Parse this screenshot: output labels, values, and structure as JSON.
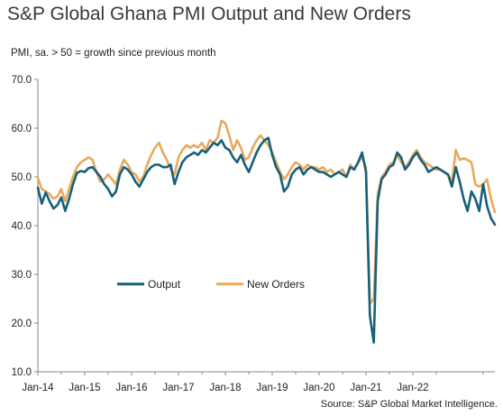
{
  "header": {
    "title": "S&P Global Ghana PMI Output and New Orders",
    "subtitle": "PMI, sa. > 50 = growth  since previous  month",
    "source": "Source: S&P Global Market Intelligence."
  },
  "colors": {
    "output": "#17607a",
    "new_orders": "#e8a95c",
    "axis": "#888888",
    "text": "#222222"
  },
  "chart_data": {
    "type": "line",
    "title": "S&P Global Ghana PMI Output and New Orders",
    "ylabel": "PMI, sa. > 50 = growth  since previous  month",
    "xlabel": "",
    "ylim": [
      10,
      70
    ],
    "yticks": [
      "10.0",
      "20.0",
      "30.0",
      "40.0",
      "50.0",
      "60.0",
      "70.0"
    ],
    "xtick_labels": [
      "Jan-14",
      "Jan-15",
      "Jan-16",
      "Jan-17",
      "Jan-18",
      "Jan-19",
      "Jan-20",
      "Jan-21",
      "Jan-22"
    ],
    "x_start": "Jan-14",
    "grid": false,
    "legend": "center-left",
    "series": [
      {
        "name": "Output",
        "color": "#17607a",
        "values": [
          47.8,
          44.5,
          46.8,
          45.0,
          43.5,
          44.2,
          45.8,
          43.0,
          45.5,
          48.5,
          50.8,
          51.2,
          51.0,
          51.8,
          52.0,
          51.0,
          50.0,
          48.5,
          47.5,
          46.0,
          47.0,
          50.5,
          52.0,
          51.5,
          50.5,
          49.0,
          48.0,
          49.5,
          51.0,
          52.0,
          52.5,
          52.5,
          52.0,
          52.0,
          52.5,
          48.5,
          51.0,
          53.0,
          54.0,
          54.5,
          55.0,
          54.5,
          55.5,
          55.0,
          56.0,
          57.0,
          56.5,
          57.5,
          56.0,
          55.5,
          54.0,
          53.0,
          54.5,
          52.5,
          51.0,
          53.0,
          55.0,
          56.5,
          57.5,
          58.0,
          54.5,
          52.0,
          50.5,
          47.0,
          48.0,
          50.5,
          51.5,
          52.0,
          50.5,
          51.5,
          52.0,
          51.5,
          51.0,
          51.0,
          50.5,
          50.0,
          50.5,
          51.0,
          50.5,
          50.0,
          52.0,
          51.5,
          53.0,
          55.0,
          51.0,
          21.5,
          16.0,
          45.0,
          49.5,
          50.5,
          52.0,
          52.5,
          55.0,
          54.0,
          51.5,
          52.5,
          54.0,
          55.0,
          53.5,
          52.5,
          51.0,
          51.5,
          52.0,
          51.5,
          51.0,
          50.5,
          48.0,
          52.0,
          49.0,
          45.5,
          43.0,
          47.0,
          45.5,
          43.0,
          48.5,
          44.0,
          41.5,
          40.2
        ]
      },
      {
        "name": "New Orders",
        "color": "#e8a95c",
        "values": [
          49.8,
          47.5,
          47.0,
          46.5,
          45.5,
          46.0,
          47.5,
          45.0,
          47.5,
          50.0,
          52.0,
          53.0,
          53.5,
          54.0,
          53.5,
          51.0,
          49.0,
          49.5,
          50.5,
          49.5,
          48.5,
          51.5,
          53.5,
          52.5,
          51.0,
          50.5,
          49.0,
          50.0,
          52.5,
          54.5,
          56.0,
          57.0,
          55.0,
          53.5,
          51.5,
          50.5,
          54.0,
          55.5,
          56.5,
          56.0,
          56.5,
          56.0,
          57.0,
          55.5,
          57.5,
          57.0,
          58.0,
          61.5,
          61.0,
          58.5,
          55.5,
          57.5,
          56.0,
          53.5,
          54.0,
          56.0,
          57.5,
          58.5,
          57.5,
          56.5,
          55.0,
          53.0,
          51.0,
          49.5,
          50.5,
          52.0,
          53.0,
          52.5,
          51.5,
          52.5,
          52.0,
          52.0,
          51.5,
          52.0,
          51.0,
          51.5,
          50.5,
          51.0,
          51.5,
          50.0,
          52.5,
          51.5,
          53.0,
          54.0,
          52.0,
          24.0,
          25.0,
          46.5,
          50.0,
          51.0,
          52.5,
          53.0,
          54.5,
          53.0,
          52.0,
          53.0,
          54.5,
          55.5,
          54.0,
          53.0,
          52.5,
          52.0,
          51.5,
          51.5,
          51.0,
          50.5,
          49.0,
          55.5,
          53.5,
          53.8,
          53.5,
          53.0,
          48.5,
          48.0,
          48.5,
          49.5,
          45.5,
          42.8
        ]
      }
    ]
  }
}
